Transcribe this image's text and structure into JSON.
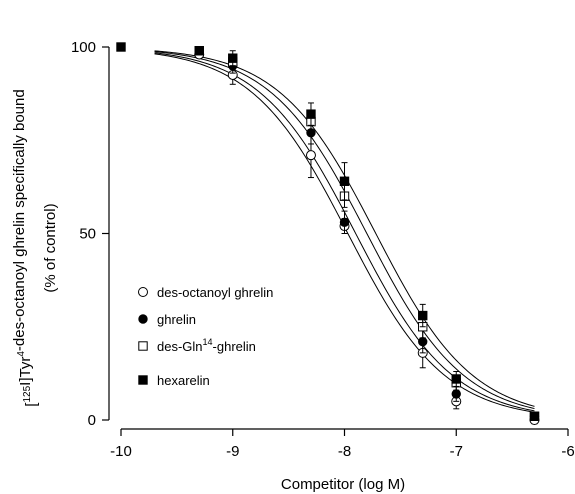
{
  "chart_data": {
    "type": "scatter",
    "title": "",
    "xlabel": "Competitor (log M)",
    "ylabel_line1": "[125I]Tyr4-des-octanoyl ghrelin specifically bound",
    "ylabel_line2": "(% of control)",
    "xlim": [
      -10,
      -6
    ],
    "ylim": [
      0,
      100
    ],
    "xticks": [
      -10,
      -9,
      -8,
      -7,
      -6
    ],
    "yticks": [
      0,
      50,
      100
    ],
    "xtick_labels": [
      "-10",
      "-9",
      "-8",
      "-7",
      "-6"
    ],
    "ytick_labels": [
      "0",
      "50",
      "100"
    ],
    "grid": false,
    "legend_position": "lower-left",
    "series": [
      {
        "name": "des-octanoyl ghrelin",
        "marker": "open-circle",
        "x": [
          -9.3,
          -9.0,
          -8.3,
          -8.0,
          -7.3,
          -7.0,
          -6.3
        ],
        "y": [
          98,
          92.5,
          71,
          52,
          18,
          5,
          0
        ],
        "err": [
          1,
          2.5,
          6,
          2,
          4,
          2,
          1
        ],
        "ic50": -7.97,
        "hill": 1.0
      },
      {
        "name": "ghrelin",
        "marker": "filled-circle",
        "x": [
          -9.3,
          -9.0,
          -8.3,
          -8.0,
          -7.3,
          -7.0,
          -6.3
        ],
        "y": [
          99,
          95,
          77,
          53,
          21,
          7,
          1
        ],
        "err": [
          1,
          2,
          3,
          3,
          3,
          2,
          1
        ],
        "ic50": -7.9,
        "hill": 1.0
      },
      {
        "name": "des-Gln14-ghrelin",
        "marker": "open-square",
        "x": [
          -9.3,
          -9.0,
          -8.3,
          -8.0,
          -7.3,
          -7.0,
          -6.3
        ],
        "y": [
          99,
          96,
          80,
          60,
          25,
          10,
          1
        ],
        "err": [
          1,
          2,
          3,
          3,
          3,
          2,
          1
        ],
        "ic50": -7.8,
        "hill": 1.0
      },
      {
        "name": "hexarelin",
        "marker": "filled-square",
        "x": [
          -10.0,
          -9.3,
          -9.0,
          -8.3,
          -8.0,
          -7.3,
          -7.0,
          -6.3
        ],
        "y": [
          100,
          99,
          97,
          82,
          64,
          28,
          11,
          1
        ],
        "err": [
          0,
          1,
          2,
          3,
          5,
          3,
          2,
          1
        ],
        "ic50": -7.72,
        "hill": 1.0
      }
    ]
  }
}
